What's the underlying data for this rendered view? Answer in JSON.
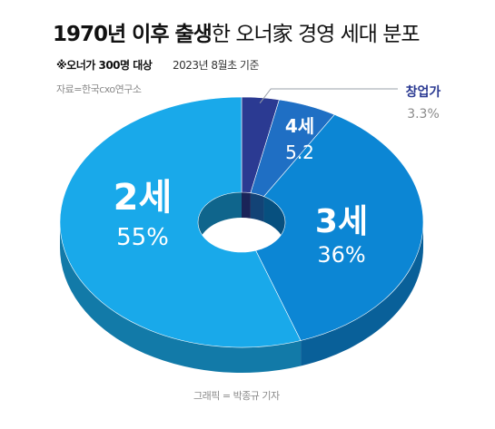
{
  "header": {
    "title_bold": "1970년 이후 출생",
    "title_rest": "한 오너家 경영 세대  분포",
    "note": "※오너가 300명 대상",
    "date": "2023년 8월초 기준",
    "source": "자료=한국cxo연구소"
  },
  "footer": {
    "credit": "그래픽 = 박종규 기자"
  },
  "chart_data": {
    "type": "pie",
    "donut": true,
    "slices": [
      {
        "name": "창업가",
        "value": 3.3,
        "value_label": "3.3%",
        "color": "#2b3a92"
      },
      {
        "name": "4세",
        "value": 5.2,
        "value_label": "5.2",
        "color": "#1f6fc4"
      },
      {
        "name": "3세",
        "value": 36,
        "value_label": "36%",
        "color": "#0c86d4"
      },
      {
        "name": "2세",
        "value": 55,
        "value_label": "55%",
        "color": "#19a9ea"
      }
    ],
    "legend_placement": "none"
  }
}
